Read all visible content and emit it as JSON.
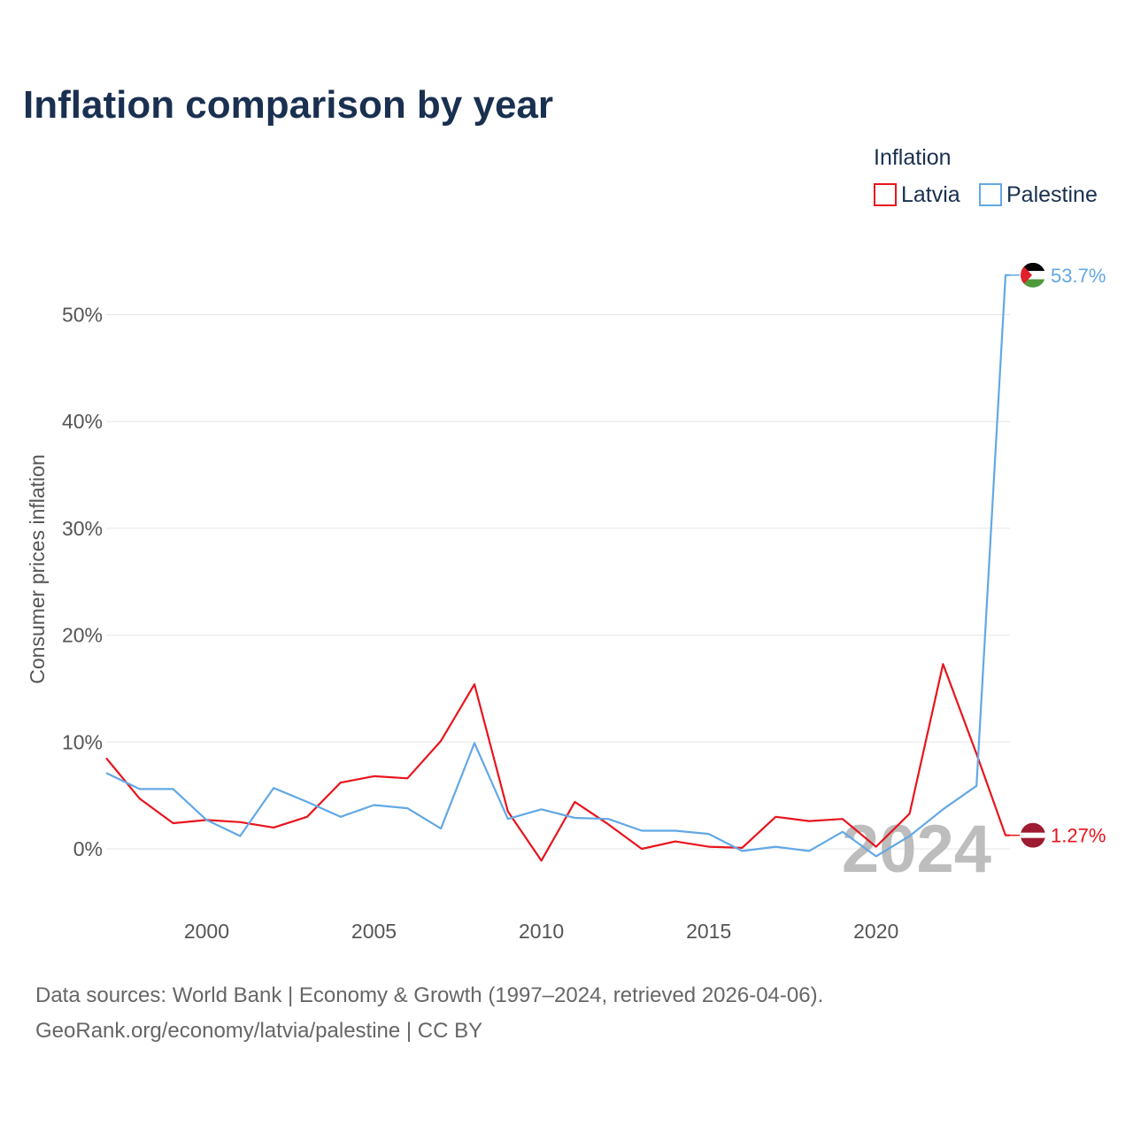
{
  "chart_data": {
    "type": "line",
    "title": "Inflation comparison by year",
    "ylabel": "Consumer prices inflation",
    "xlabel": "",
    "legend_title": "Inflation",
    "legend_position": "top-right",
    "x": [
      1997,
      1998,
      1999,
      2000,
      2001,
      2002,
      2003,
      2004,
      2005,
      2006,
      2007,
      2008,
      2009,
      2010,
      2011,
      2012,
      2013,
      2014,
      2015,
      2016,
      2017,
      2018,
      2019,
      2020,
      2021,
      2022,
      2023,
      2024
    ],
    "xlim": [
      1997,
      2024
    ],
    "ylim": [
      -6,
      56
    ],
    "x_ticks": [
      2000,
      2005,
      2010,
      2015,
      2020
    ],
    "x_tick_labels": [
      "2000",
      "2005",
      "2010",
      "2015",
      "2020"
    ],
    "y_ticks": [
      0,
      10,
      20,
      30,
      40,
      50
    ],
    "y_tick_labels": [
      "0%",
      "10%",
      "20%",
      "30%",
      "40%",
      "50%"
    ],
    "grid": true,
    "current_year": "2024",
    "series": [
      {
        "name": "Latvia",
        "color": "#e8141c",
        "flag": "latvia-flag",
        "end_label": "1.27%",
        "values": [
          8.5,
          4.7,
          2.4,
          2.7,
          2.5,
          2.0,
          3.0,
          6.2,
          6.8,
          6.6,
          10.1,
          15.4,
          3.5,
          -1.1,
          4.4,
          2.3,
          0.0,
          0.7,
          0.2,
          0.1,
          3.0,
          2.6,
          2.8,
          0.2,
          3.3,
          17.3,
          8.9,
          1.27
        ]
      },
      {
        "name": "Palestine",
        "color": "#62a8e5",
        "flag": "palestine-flag",
        "end_label": "53.7%",
        "values": [
          7.1,
          5.6,
          5.6,
          2.7,
          1.2,
          5.7,
          4.4,
          3.0,
          4.1,
          3.8,
          1.9,
          9.9,
          2.8,
          3.7,
          2.9,
          2.8,
          1.7,
          1.7,
          1.4,
          -0.2,
          0.2,
          -0.2,
          1.6,
          -0.7,
          1.2,
          3.7,
          5.9,
          53.7
        ]
      }
    ]
  },
  "footer": {
    "source_line": "Data sources: World Bank | Economy & Growth (1997–2024, retrieved 2026-04-06).",
    "url_line": "GeoRank.org/economy/latvia/palestine | CC BY"
  }
}
